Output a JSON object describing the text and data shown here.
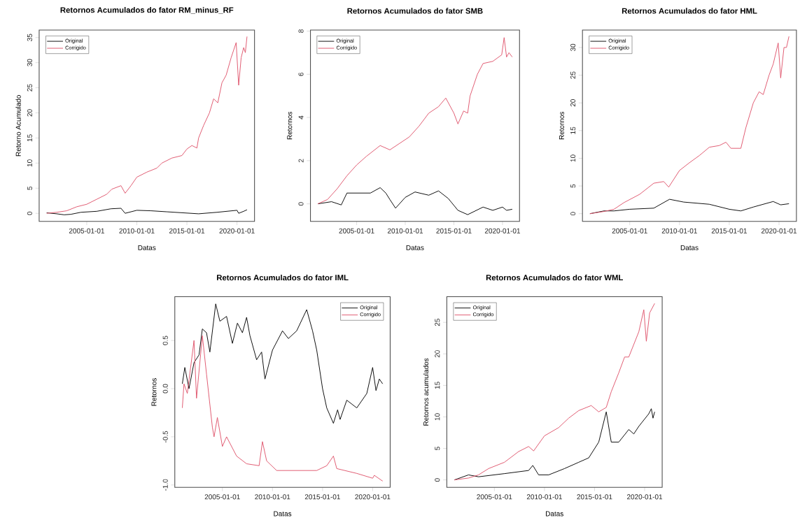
{
  "chart_data": [
    {
      "type": "line",
      "title": "Retornos Acumulados do fator RM_minus_RF",
      "xlabel": "Datas",
      "ylabel": "Retorno Acumulado",
      "legend": "top left",
      "xlim": [
        "2000-04",
        "2021-10"
      ],
      "xticks": [
        "2005-01-01",
        "2010-01-01",
        "2015-01-01",
        "2020-01-01"
      ],
      "ylim": [
        -1.6,
        36.5
      ],
      "yticks": [
        0,
        5,
        10,
        15,
        20,
        25,
        30,
        35
      ],
      "series": [
        {
          "name": "Original",
          "color": "#000000",
          "x": [
            "2001-01",
            "2002-01",
            "2002-10",
            "2003-06",
            "2004-06",
            "2006-01",
            "2007-06",
            "2008-06",
            "2008-11",
            "2010-01",
            "2011-06",
            "2013-01",
            "2016-03",
            "2018-01",
            "2020-01",
            "2020-03",
            "2020-09",
            "2021-01"
          ],
          "values": [
            0.1,
            -0.1,
            -0.3,
            -0.2,
            0.2,
            0.4,
            0.9,
            1.0,
            0.0,
            0.6,
            0.5,
            0.3,
            -0.1,
            0.2,
            0.6,
            0.0,
            0.4,
            0.7
          ]
        },
        {
          "name": "Corrigido",
          "color": "#df536b",
          "x": [
            "2001-01",
            "2002-01",
            "2003-01",
            "2004-01",
            "2005-01",
            "2006-01",
            "2007-01",
            "2007-07",
            "2008-06",
            "2008-11",
            "2009-06",
            "2010-01",
            "2011-01",
            "2012-01",
            "2012-07",
            "2013-07",
            "2014-07",
            "2015-01",
            "2015-07",
            "2016-01",
            "2016-03",
            "2016-09",
            "2017-04",
            "2017-09",
            "2018-02",
            "2018-07",
            "2018-12",
            "2019-06",
            "2019-12",
            "2020-03",
            "2020-06",
            "2020-09",
            "2020-11",
            "2021-01"
          ],
          "values": [
            0,
            0.2,
            0.5,
            1.3,
            1.8,
            2.8,
            3.8,
            4.8,
            5.5,
            4.0,
            5.5,
            7.2,
            8.2,
            9.0,
            10.0,
            11.0,
            11.5,
            12.8,
            13.5,
            13.0,
            15.0,
            17.5,
            20,
            22.8,
            22.0,
            26,
            27.5,
            31,
            34,
            25.5,
            31,
            33,
            32,
            35.2
          ]
        }
      ]
    },
    {
      "type": "line",
      "title": "Retornos Acumulados do fator SMB",
      "xlabel": "Datas",
      "ylabel": "Retornos",
      "legend": "top left",
      "xlim": [
        "2000-04",
        "2021-10"
      ],
      "xticks": [
        "2005-01-01",
        "2010-01-01",
        "2015-01-01",
        "2020-01-01"
      ],
      "ylim": [
        -0.81,
        8.05
      ],
      "yticks": [
        0,
        2,
        4,
        6,
        8
      ],
      "series": [
        {
          "name": "Original",
          "color": "#000000",
          "x": [
            "2001-01",
            "2002-06",
            "2003-06",
            "2004-01",
            "2005-06",
            "2006-06",
            "2007-06",
            "2008-01",
            "2008-06",
            "2009-01",
            "2010-01",
            "2011-01",
            "2012-06",
            "2013-06",
            "2014-06",
            "2015-06",
            "2016-06",
            "2018-01",
            "2019-01",
            "2020-01",
            "2020-06",
            "2021-01"
          ],
          "values": [
            0,
            0.1,
            -0.05,
            0.5,
            0.5,
            0.5,
            0.75,
            0.5,
            0.2,
            -0.2,
            0.3,
            0.55,
            0.4,
            0.6,
            0.25,
            -0.3,
            -0.5,
            -0.15,
            -0.3,
            -0.15,
            -0.3,
            -0.25
          ]
        },
        {
          "name": "Corrigido",
          "color": "#df536b",
          "x": [
            "2001-01",
            "2002-01",
            "2003-01",
            "2004-01",
            "2005-01",
            "2006-01",
            "2007-06",
            "2008-06",
            "2009-06",
            "2010-06",
            "2011-06",
            "2012-06",
            "2013-06",
            "2014-03",
            "2015-01",
            "2015-06",
            "2016-01",
            "2016-06",
            "2016-09",
            "2017-06",
            "2018-01",
            "2019-01",
            "2019-12",
            "2020-03",
            "2020-06",
            "2020-09",
            "2021-01"
          ],
          "values": [
            0,
            0.2,
            0.7,
            1.3,
            1.8,
            2.2,
            2.7,
            2.5,
            2.8,
            3.1,
            3.6,
            4.2,
            4.5,
            4.9,
            4.2,
            3.7,
            4.3,
            4.2,
            5.0,
            6.0,
            6.5,
            6.6,
            6.9,
            7.7,
            6.8,
            7.0,
            6.8
          ]
        }
      ]
    },
    {
      "type": "line",
      "title": "Retornos Acumulados do fator HML",
      "xlabel": "Datas",
      "ylabel": "Retornos",
      "legend": "top left",
      "xlim": [
        "2000-04",
        "2021-10"
      ],
      "xticks": [
        "2005-01-01",
        "2010-01-01",
        "2015-01-01",
        "2020-01-01"
      ],
      "ylim": [
        -1.38,
        33.15
      ],
      "yticks": [
        0,
        5,
        10,
        15,
        20,
        25,
        30
      ],
      "series": [
        {
          "name": "Original",
          "color": "#000000",
          "x": [
            "2001-01",
            "2002-06",
            "2003-06",
            "2005-01",
            "2007-06",
            "2009-01",
            "2010-06",
            "2013-01",
            "2015-01",
            "2016-03",
            "2017-06",
            "2019-06",
            "2020-03",
            "2021-01"
          ],
          "values": [
            0,
            0.5,
            0.5,
            0.8,
            1.0,
            2.6,
            2.1,
            1.7,
            0.8,
            0.5,
            1.2,
            2.2,
            1.6,
            1.8
          ]
        },
        {
          "name": "Corrigido",
          "color": "#df536b",
          "x": [
            "2001-01",
            "2002-06",
            "2003-06",
            "2004-06",
            "2006-01",
            "2007-06",
            "2008-06",
            "2008-12",
            "2010-01",
            "2011-01",
            "2012-01",
            "2013-01",
            "2014-01",
            "2014-09",
            "2015-03",
            "2016-03",
            "2016-09",
            "2017-06",
            "2018-01",
            "2018-06",
            "2019-01",
            "2019-06",
            "2019-12",
            "2020-03",
            "2020-07",
            "2020-10",
            "2021-01"
          ],
          "values": [
            0,
            0.4,
            0.8,
            2.0,
            3.5,
            5.5,
            5.8,
            4.8,
            7.8,
            9.2,
            10.5,
            12.0,
            12.3,
            12.9,
            11.8,
            11.8,
            15.5,
            20,
            22,
            21.5,
            25,
            27,
            30.8,
            24.5,
            30,
            30,
            32
          ]
        }
      ]
    },
    {
      "type": "line",
      "title": "Retornos Acumulados do fator IML",
      "xlabel": "Datas",
      "ylabel": "Retornos",
      "legend": "top right",
      "xlim": [
        "2000-04",
        "2021-10"
      ],
      "xticks": [
        "2005-01-01",
        "2010-01-01",
        "2015-01-01",
        "2020-01-01"
      ],
      "ylim": [
        -1.025,
        0.954
      ],
      "yticks": [
        {
          "value": -1,
          "label": "-1.0"
        },
        -0.5,
        {
          "value": 0,
          "label": "0.0"
        },
        0.5
      ],
      "series": [
        {
          "name": "Original",
          "color": "#000000",
          "x": [
            "2001-01",
            "2001-04",
            "2001-09",
            "2002-03",
            "2002-09",
            "2003-01",
            "2003-06",
            "2003-10",
            "2004-05",
            "2004-10",
            "2005-06",
            "2006-01",
            "2006-07",
            "2007-01",
            "2007-06",
            "2007-10",
            "2008-06",
            "2008-12",
            "2009-04",
            "2010-01",
            "2011-01",
            "2011-08",
            "2012-06",
            "2013-06",
            "2014-01",
            "2014-06",
            "2015-01",
            "2015-06",
            "2016-02",
            "2016-07",
            "2016-10",
            "2017-06",
            "2018-06",
            "2019-06",
            "2020-01",
            "2020-05",
            "2020-09",
            "2021-01"
          ],
          "values": [
            0.05,
            0.22,
            0.0,
            0.27,
            0.35,
            0.62,
            0.58,
            0.38,
            0.88,
            0.7,
            0.75,
            0.47,
            0.68,
            0.58,
            0.74,
            0.55,
            0.3,
            0.38,
            0.1,
            0.4,
            0.6,
            0.52,
            0.6,
            0.82,
            0.6,
            0.4,
            0.0,
            -0.2,
            -0.36,
            -0.22,
            -0.32,
            -0.12,
            -0.2,
            -0.05,
            0.22,
            -0.02,
            0.1,
            0.05
          ]
        },
        {
          "name": "Corrigido",
          "color": "#df536b",
          "x": [
            "2001-01",
            "2001-03",
            "2001-07",
            "2002-03",
            "2002-06",
            "2003-01",
            "2003-06",
            "2004-01",
            "2004-03",
            "2004-07",
            "2005-01",
            "2005-06",
            "2006-06",
            "2007-06",
            "2008-09",
            "2009-01",
            "2009-06",
            "2010-06",
            "2012-06",
            "2014-06",
            "2015-06",
            "2016-02",
            "2016-06",
            "2018-06",
            "2020-01",
            "2020-03",
            "2021-01"
          ],
          "values": [
            -0.2,
            0.05,
            -0.05,
            0.5,
            -0.1,
            0.55,
            0.15,
            -0.4,
            -0.5,
            -0.3,
            -0.6,
            -0.5,
            -0.7,
            -0.78,
            -0.8,
            -0.55,
            -0.75,
            -0.85,
            -0.85,
            -0.85,
            -0.8,
            -0.7,
            -0.83,
            -0.88,
            -0.93,
            -0.9,
            -0.96
          ]
        }
      ]
    },
    {
      "type": "line",
      "title": "Retornos Acumulados do fator WML",
      "xlabel": "Datas",
      "ylabel": "Retornos acumulados",
      "legend": "top left",
      "xlim": [
        "2000-04",
        "2021-10"
      ],
      "xticks": [
        "2005-01-01",
        "2010-01-01",
        "2015-01-01",
        "2020-01-01"
      ],
      "ylim": [
        -1.18,
        29.06
      ],
      "yticks": [
        0,
        5,
        10,
        15,
        20,
        25
      ],
      "series": [
        {
          "name": "Original",
          "color": "#000000",
          "x": [
            "2001-01",
            "2002-06",
            "2003-06",
            "2006-01",
            "2008-06",
            "2008-11",
            "2009-06",
            "2010-06",
            "2012-01",
            "2013-06",
            "2014-06",
            "2015-06",
            "2016-03",
            "2016-09",
            "2017-06",
            "2018-06",
            "2018-12",
            "2019-06",
            "2020-06",
            "2020-09",
            "2020-11",
            "2021-01"
          ],
          "values": [
            0,
            0.8,
            0.5,
            1.0,
            1.5,
            2.3,
            0.8,
            0.8,
            1.8,
            2.8,
            3.5,
            6.0,
            10.8,
            6.0,
            6.0,
            8.0,
            7.3,
            8.5,
            10.5,
            11.3,
            9.8,
            10.8
          ]
        },
        {
          "name": "Corrigido",
          "color": "#df536b",
          "x": [
            "2001-01",
            "2002-06",
            "2003-06",
            "2004-06",
            "2006-01",
            "2007-06",
            "2008-06",
            "2008-12",
            "2010-01",
            "2011-06",
            "2012-06",
            "2013-06",
            "2014-09",
            "2015-06",
            "2016-03",
            "2016-09",
            "2017-06",
            "2018-01",
            "2018-06",
            "2019-06",
            "2019-12",
            "2020-03",
            "2020-07",
            "2021-01"
          ],
          "values": [
            0,
            0.3,
            0.8,
            1.8,
            2.8,
            4.5,
            5.3,
            4.6,
            7.0,
            8.3,
            9.8,
            11.0,
            11.8,
            10.8,
            11.5,
            14.0,
            17.0,
            19.5,
            19.5,
            23.5,
            27.0,
            22.0,
            26.5,
            28
          ]
        }
      ]
    }
  ]
}
